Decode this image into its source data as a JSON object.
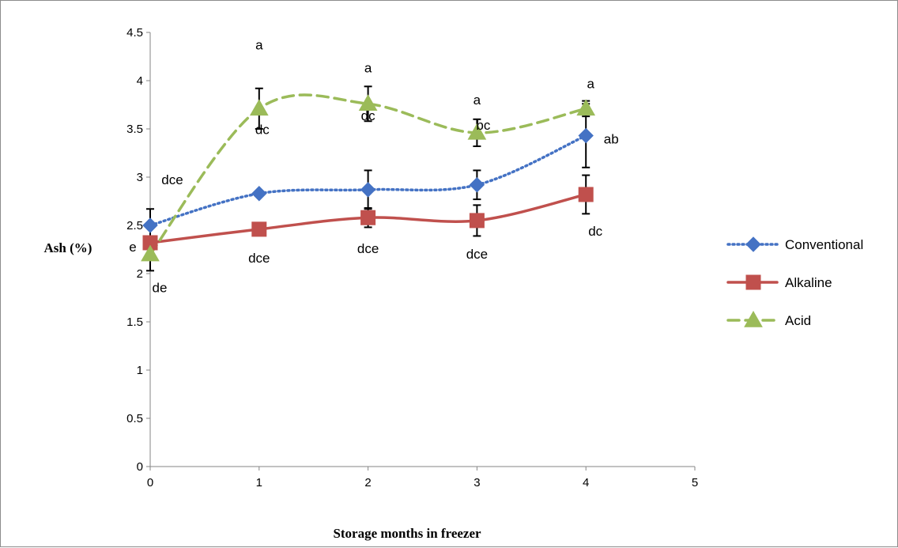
{
  "chart_data": {
    "type": "line",
    "title": "",
    "xlabel": "Storage months in freezer",
    "ylabel": "Ash (%)",
    "xlim": [
      0,
      5
    ],
    "ylim": [
      0,
      4.5
    ],
    "x_ticks": [
      "0",
      "1",
      "2",
      "3",
      "4",
      "5"
    ],
    "y_ticks": [
      "0",
      "0.5",
      "1",
      "1.5",
      "2",
      "2.5",
      "3",
      "3.5",
      "4",
      "4.5"
    ],
    "grid": false,
    "legend_position": "right",
    "series": [
      {
        "name": "Conventional",
        "color": "#4472c4",
        "line_style": "dotted",
        "marker": "diamond",
        "x": [
          0,
          1,
          2,
          3,
          4
        ],
        "y": [
          2.5,
          2.83,
          2.87,
          2.92,
          3.43
        ],
        "error": [
          0.17,
          0.0,
          0.2,
          0.15,
          0.33
        ],
        "labels": [
          "dce",
          "dc",
          "dc",
          "bc",
          "ab"
        ]
      },
      {
        "name": "Alkaline",
        "color": "#c0504d",
        "line_style": "solid",
        "marker": "square",
        "x": [
          0,
          1,
          2,
          3,
          4
        ],
        "y": [
          2.32,
          2.46,
          2.58,
          2.55,
          2.82
        ],
        "error": [
          0.0,
          0.0,
          0.1,
          0.16,
          0.2
        ],
        "labels": [
          "e",
          "dce",
          "dce",
          "dce",
          "dc"
        ]
      },
      {
        "name": "Acid",
        "color": "#9bbb59",
        "line_style": "dashed",
        "marker": "triangle",
        "x": [
          0,
          1,
          2,
          3,
          4
        ],
        "y": [
          2.2,
          3.71,
          3.76,
          3.46,
          3.71
        ],
        "error": [
          0.17,
          0.21,
          0.18,
          0.14,
          0.08
        ],
        "labels": [
          "de",
          "a",
          "a",
          "a",
          "a"
        ]
      }
    ]
  }
}
